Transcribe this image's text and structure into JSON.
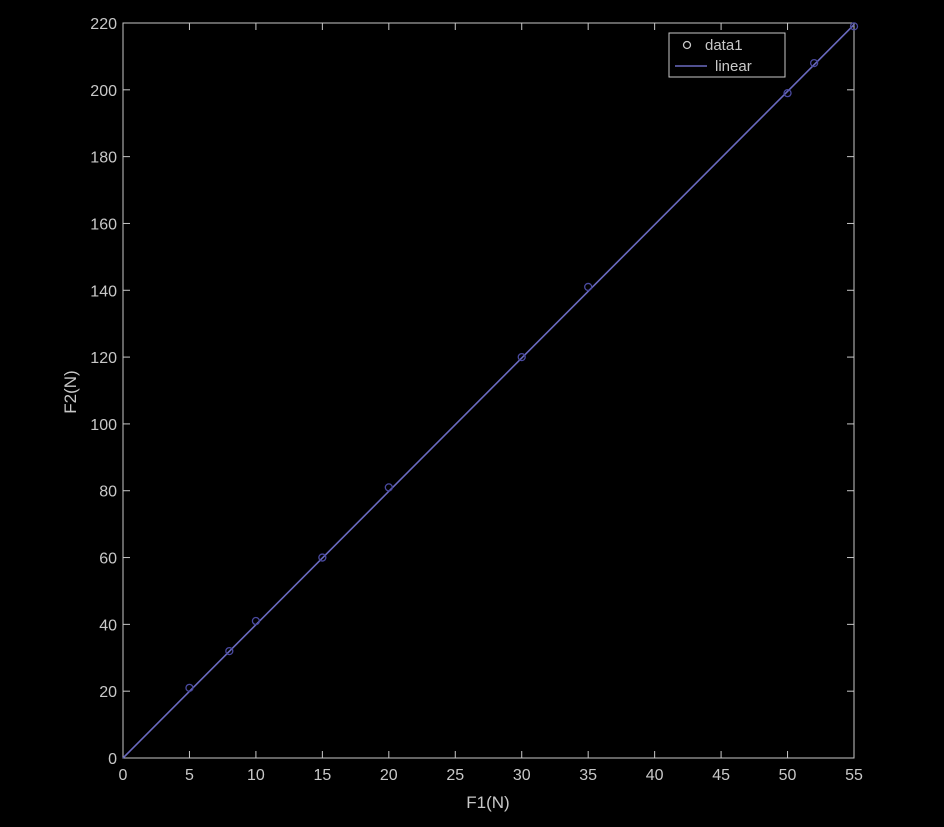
{
  "chart_data": {
    "type": "scatter",
    "title": "",
    "xlabel": "F1(N)",
    "ylabel": "F2(N)",
    "xlim": [
      0,
      55
    ],
    "ylim": [
      0,
      220
    ],
    "xticks": [
      0,
      5,
      10,
      15,
      20,
      25,
      30,
      35,
      40,
      45,
      50,
      55
    ],
    "yticks": [
      0,
      20,
      40,
      60,
      80,
      100,
      120,
      140,
      160,
      180,
      200,
      220
    ],
    "grid": false,
    "legend_position": "top-right",
    "series": [
      {
        "name": "data1",
        "kind": "markers",
        "marker": "circle",
        "x": [
          5,
          8,
          10,
          15,
          20,
          30,
          35,
          50,
          52,
          55
        ],
        "y": [
          21,
          32,
          41,
          60,
          81,
          120,
          141,
          199,
          208,
          219
        ]
      },
      {
        "name": "linear",
        "kind": "line",
        "x": [
          0,
          55
        ],
        "y": [
          0,
          219.5
        ]
      }
    ],
    "colors": {
      "background": "#000000",
      "axes": "#c8c8c8",
      "text": "#c8c8c8",
      "line": "#6a6ac0",
      "marker": "#4a4aa0"
    }
  }
}
